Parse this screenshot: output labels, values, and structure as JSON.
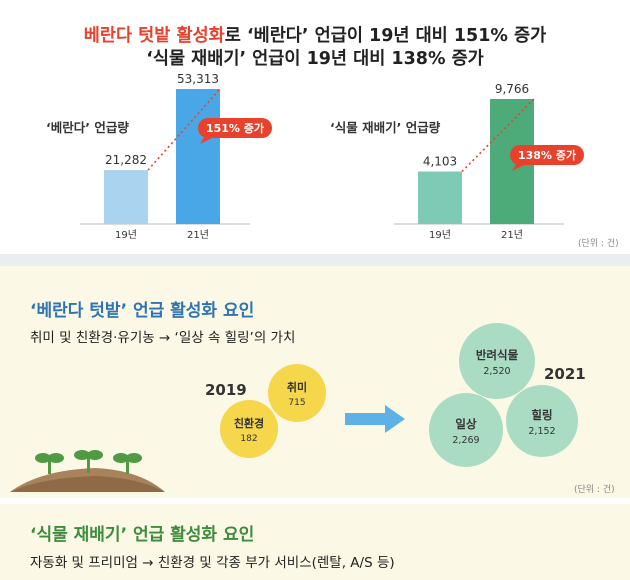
{
  "header": {
    "line1_red": "베란다 텃밭 활성화",
    "line1_rest": "로 ‘베란다’ 언급이 19년 대비 151% 증가",
    "line2": "‘식물 재배기’ 언급이 19년 대비 138% 증가"
  },
  "chart_data": [
    {
      "type": "bar",
      "title": "‘베란다’ 언급량",
      "categories": [
        "19년",
        "21년"
      ],
      "values": [
        21282,
        53313
      ],
      "value_labels": [
        "21,282",
        "53,313"
      ],
      "colors": [
        "#a9d3ef",
        "#4aa7e7"
      ],
      "annotation": "151% 증가",
      "annotation_color": "#e8412c"
    },
    {
      "type": "bar",
      "title": "‘식물 재배기’ 언급량",
      "categories": [
        "19년",
        "21년"
      ],
      "values": [
        4103,
        9766
      ],
      "value_labels": [
        "4,103",
        "9,766"
      ],
      "colors": [
        "#7fcab4",
        "#4daa79"
      ],
      "annotation": "138% 증가",
      "annotation_color": "#e8412c"
    }
  ],
  "unit_label": "(단위 : 건)",
  "section1": {
    "title": "‘베란다 텃밭’ 언급 활성화 요인",
    "subtitle": "취미 및 친환경·유기농 → ‘일상 속 힐링’의 가치",
    "year_before": "2019",
    "year_after": "2021",
    "bubbles_before": [
      {
        "label": "취미",
        "value": "715"
      },
      {
        "label": "친환경",
        "value": "182"
      }
    ],
    "bubbles_after": [
      {
        "label": "반려식물",
        "value": "2,520"
      },
      {
        "label": "일상",
        "value": "2,269"
      },
      {
        "label": "힐링",
        "value": "2,152"
      }
    ],
    "unit_label": "(단위 : 건)",
    "colors": {
      "before": "#f6d64a",
      "after": "#a9dcc3",
      "arrow": "#5eb1e6"
    }
  },
  "section2": {
    "title": "‘식물 재배기’ 언급 활성화 요인",
    "subtitle": "자동화 및 프리미엄 → 친환경 및 각종 부가 서비스(렌탈, A/S 등)"
  }
}
